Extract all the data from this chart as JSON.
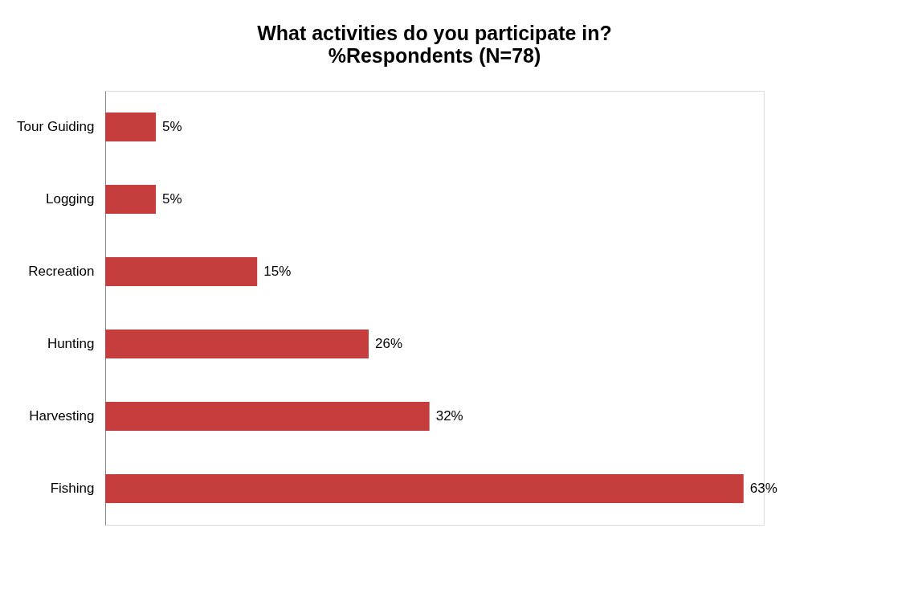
{
  "chart_data": {
    "type": "bar",
    "orientation": "horizontal",
    "title": "What activities do you participate in?",
    "subtitle": "%Respondents (N=78)",
    "categories": [
      "Tour Guiding",
      "Logging",
      "Recreation",
      "Hunting",
      "Harvesting",
      "Fishing"
    ],
    "values": [
      5,
      5,
      15,
      26,
      32,
      63
    ],
    "value_labels": [
      "5%",
      "5%",
      "15%",
      "26%",
      "32%",
      "63%"
    ],
    "color": "#c63d3d"
  }
}
